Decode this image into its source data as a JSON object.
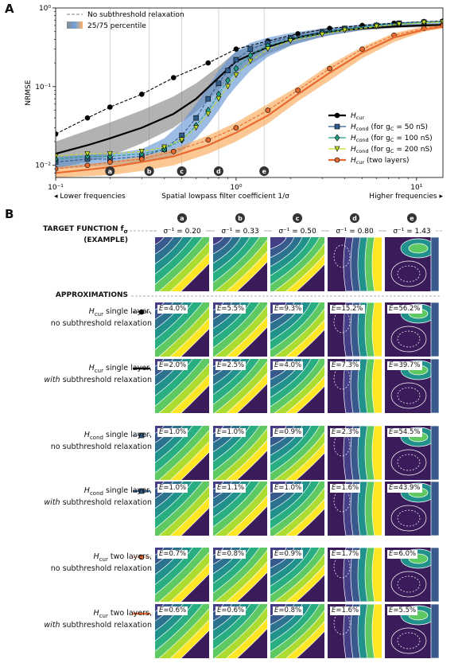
{
  "panel_a": {
    "letter": "A",
    "chart_data": {
      "type": "line",
      "xlabel": "Spatial lowpass filter coefficient 1/σ",
      "ylabel": "NRMSE",
      "xscale": "log",
      "yscale": "log",
      "xlim": [
        0.1,
        14
      ],
      "ylim": [
        0.007,
        1.0
      ],
      "x_ticks": [
        "10⁻¹",
        "10⁰",
        "10¹"
      ],
      "y_ticks": [
        "10⁻²",
        "10⁻¹",
        "10⁰"
      ],
      "left_hint": "◂ Lower frequencies",
      "right_hint": "Higher frequencies ▸",
      "grid": "vertical lines at markers",
      "markers": [
        {
          "label": "a",
          "x": 0.2
        },
        {
          "label": "b",
          "x": 0.33
        },
        {
          "label": "c",
          "x": 0.5
        },
        {
          "label": "d",
          "x": 0.8
        },
        {
          "label": "e",
          "x": 1.43
        }
      ],
      "legend_top": [
        {
          "label": "No subthreshold relaxation",
          "style": "dashed"
        },
        {
          "label": "25/75 percentile",
          "style": "band"
        }
      ],
      "legend": [
        {
          "label": "Hcur",
          "sub": "cur",
          "color": "#000000",
          "marker": "circle"
        },
        {
          "label": "Hcond (for gC = 50 nS)",
          "color": "#2f5c8a",
          "marker": "square"
        },
        {
          "label": "Hcond (for gC = 100 nS)",
          "color": "#1fa187",
          "marker": "diamond"
        },
        {
          "label": "Hcond (for gC = 200 nS)",
          "color": "#c3dc26",
          "marker": "triangle"
        },
        {
          "label": "Hcur (two layers)",
          "color": "#e86a30",
          "marker": "circle"
        }
      ],
      "legend_text": {
        "l1_main": "H",
        "l1_sub": "cur",
        "l1_rest": "",
        "l2_main": "H",
        "l2_sub": "cond",
        "l2_rest": " (for g",
        "l2_sub2": "C",
        "l2_val": " = 50 nS)",
        "l3_main": "H",
        "l3_sub": "cond",
        "l3_rest": " (for g",
        "l3_sub2": "C",
        "l3_val": " = 100 nS)",
        "l4_main": "H",
        "l4_sub": "cond",
        "l4_rest": " (for g",
        "l4_sub2": "C",
        "l4_val": " = 200 nS)",
        "l5_main": "H",
        "l5_sub": "cur",
        "l5_rest": " (two layers)"
      },
      "series": [
        {
          "key": "cur_dash",
          "color": "#000000",
          "dash": true,
          "marker": "circle",
          "x": [
            0.1,
            0.15,
            0.2,
            0.3,
            0.45,
            0.7,
            1.0,
            1.5,
            2.2,
            3.3,
            5,
            7.5,
            11,
            14
          ],
          "y": [
            0.025,
            0.04,
            0.055,
            0.08,
            0.13,
            0.2,
            0.3,
            0.38,
            0.47,
            0.55,
            0.6,
            0.64,
            0.67,
            0.68
          ]
        },
        {
          "key": "cur",
          "color": "#000000",
          "dash": false,
          "marker": "none",
          "x": [
            0.1,
            0.15,
            0.2,
            0.3,
            0.45,
            0.6,
            0.8,
            1.0,
            1.5,
            2.2,
            3.3,
            5,
            7.5,
            11,
            14
          ],
          "y": [
            0.014,
            0.018,
            0.022,
            0.03,
            0.045,
            0.07,
            0.13,
            0.21,
            0.32,
            0.42,
            0.5,
            0.55,
            0.58,
            0.6,
            0.61
          ]
        },
        {
          "key": "cond50",
          "color": "#2f5c8a",
          "dash": true,
          "marker": "square",
          "x": [
            0.1,
            0.15,
            0.2,
            0.3,
            0.4,
            0.5,
            0.6,
            0.7,
            0.8,
            0.9,
            1.0,
            1.2,
            1.5,
            2,
            3,
            4,
            6,
            8,
            11,
            14
          ],
          "y": [
            0.011,
            0.012,
            0.012,
            0.013,
            0.016,
            0.024,
            0.04,
            0.07,
            0.11,
            0.16,
            0.22,
            0.3,
            0.36,
            0.42,
            0.5,
            0.55,
            0.6,
            0.64,
            0.66,
            0.67
          ]
        },
        {
          "key": "cond100",
          "color": "#1fa187",
          "dash": true,
          "marker": "diamond",
          "x": [
            0.1,
            0.15,
            0.2,
            0.3,
            0.4,
            0.5,
            0.6,
            0.7,
            0.8,
            0.9,
            1.0,
            1.2,
            1.5,
            2,
            3,
            4,
            6,
            8,
            11,
            14
          ],
          "y": [
            0.012,
            0.013,
            0.013,
            0.014,
            0.016,
            0.021,
            0.032,
            0.05,
            0.08,
            0.12,
            0.17,
            0.25,
            0.33,
            0.4,
            0.48,
            0.54,
            0.6,
            0.63,
            0.66,
            0.67
          ]
        },
        {
          "key": "cond200",
          "color": "#c3dc26",
          "dash": true,
          "marker": "triangle",
          "x": [
            0.1,
            0.15,
            0.2,
            0.3,
            0.4,
            0.5,
            0.6,
            0.7,
            0.8,
            0.9,
            1.0,
            1.2,
            1.5,
            2,
            3,
            4,
            6,
            8,
            11,
            14
          ],
          "y": [
            0.013,
            0.014,
            0.014,
            0.015,
            0.017,
            0.021,
            0.03,
            0.045,
            0.07,
            0.1,
            0.14,
            0.21,
            0.3,
            0.38,
            0.46,
            0.52,
            0.58,
            0.62,
            0.65,
            0.66
          ]
        },
        {
          "key": "two_dash",
          "color": "#e86a30",
          "dash": true,
          "marker": "circle",
          "x": [
            0.1,
            0.15,
            0.2,
            0.3,
            0.45,
            0.7,
            1.0,
            1.5,
            2.2,
            3.3,
            5,
            7.5,
            11,
            14
          ],
          "y": [
            0.009,
            0.01,
            0.011,
            0.012,
            0.015,
            0.021,
            0.03,
            0.05,
            0.09,
            0.17,
            0.3,
            0.45,
            0.55,
            0.6
          ]
        },
        {
          "key": "two",
          "color": "#e86a30",
          "dash": false,
          "marker": "none",
          "x": [
            0.1,
            0.15,
            0.2,
            0.3,
            0.45,
            0.7,
            1.0,
            1.5,
            2.2,
            3.3,
            5,
            7.5,
            11,
            14
          ],
          "y": [
            0.008,
            0.0088,
            0.0095,
            0.011,
            0.013,
            0.018,
            0.026,
            0.043,
            0.08,
            0.15,
            0.27,
            0.42,
            0.53,
            0.58
          ]
        }
      ],
      "bands": [
        {
          "color": "#7f7f7f",
          "x": [
            0.1,
            0.2,
            0.3,
            0.45,
            0.6,
            0.8,
            1.0,
            1.5,
            2.2,
            3.3,
            5,
            8,
            14
          ],
          "lo": [
            0.009,
            0.013,
            0.019,
            0.03,
            0.048,
            0.09,
            0.15,
            0.26,
            0.36,
            0.45,
            0.52,
            0.56,
            0.58
          ],
          "hi": [
            0.02,
            0.035,
            0.05,
            0.075,
            0.11,
            0.18,
            0.28,
            0.38,
            0.47,
            0.54,
            0.6,
            0.62,
            0.64
          ]
        },
        {
          "color": "#5b8fd1",
          "x": [
            0.1,
            0.2,
            0.3,
            0.4,
            0.5,
            0.6,
            0.7,
            0.8,
            0.9,
            1.0,
            1.2,
            1.5,
            2,
            3,
            5,
            8,
            14
          ],
          "lo": [
            0.009,
            0.01,
            0.011,
            0.012,
            0.015,
            0.022,
            0.033,
            0.05,
            0.075,
            0.1,
            0.16,
            0.24,
            0.33,
            0.43,
            0.53,
            0.6,
            0.64
          ],
          "hi": [
            0.013,
            0.014,
            0.016,
            0.022,
            0.035,
            0.06,
            0.1,
            0.16,
            0.22,
            0.28,
            0.36,
            0.42,
            0.48,
            0.55,
            0.62,
            0.66,
            0.69
          ]
        },
        {
          "color": "#f9a14a",
          "x": [
            0.1,
            0.2,
            0.3,
            0.45,
            0.7,
            1.0,
            1.5,
            2.2,
            3.3,
            5,
            7.5,
            11,
            14
          ],
          "lo": [
            0.007,
            0.0075,
            0.0085,
            0.01,
            0.014,
            0.02,
            0.034,
            0.065,
            0.12,
            0.23,
            0.37,
            0.5,
            0.55
          ],
          "hi": [
            0.0095,
            0.011,
            0.013,
            0.016,
            0.024,
            0.035,
            0.06,
            0.1,
            0.19,
            0.32,
            0.48,
            0.58,
            0.63
          ]
        }
      ]
    }
  },
  "panel_b": {
    "letter": "B",
    "target_title": "TARGET FUNCTION f",
    "target_sub": "σ",
    "target_example": "(EXAMPLE)",
    "approx_title": "APPROXIMATIONS",
    "columns": [
      {
        "badge": "a",
        "sigma_label": "σ⁻¹ = 0.20",
        "s": 0.2
      },
      {
        "badge": "b",
        "sigma_label": "σ⁻¹ = 0.33",
        "s": 0.33
      },
      {
        "badge": "c",
        "sigma_label": "σ⁻¹ = 0.50",
        "s": 0.5
      },
      {
        "badge": "d",
        "sigma_label": "σ⁻¹ = 0.80",
        "s": 0.8
      },
      {
        "badge": "e",
        "sigma_label": "σ⁻¹ = 1.43",
        "s": 1.43
      }
    ],
    "rows": [
      {
        "main": "H",
        "sub": "cur",
        "line1_rest": " single layer,",
        "line2": "no subthreshold relaxation",
        "line2_italic": false,
        "legend_color": "#000000",
        "legend_dash": true,
        "legend_marker": "circle",
        "errors": [
          "E=4.0%",
          "E=5.5%",
          "E=9.3%",
          "E=15.2%",
          "E=56.2%"
        ]
      },
      {
        "main": "H",
        "sub": "cur",
        "line1_rest": " single layer,",
        "line2_pre": "",
        "line2_it": "with",
        "line2_post": " subthreshold relaxation",
        "line2_italic": true,
        "legend_color": "#000000",
        "legend_dash": false,
        "legend_marker": "none",
        "errors": [
          "E=2.0%",
          "E=2.5%",
          "E=4.0%",
          "E=7.3%",
          "E=39.7%"
        ]
      },
      {
        "main": "H",
        "sub": "cond",
        "line1_rest": " single layer,",
        "line2": "no subthreshold relaxation",
        "line2_italic": false,
        "legend_color": "#2f5c8a",
        "legend_dash": true,
        "legend_marker": "square",
        "errors": [
          "E=1.0%",
          "E=1.0%",
          "E=0.9%",
          "E=2.3%",
          "E=54.5%"
        ]
      },
      {
        "main": "H",
        "sub": "cond",
        "line1_rest": " single layer,",
        "line2_pre": "",
        "line2_it": "with",
        "line2_post": " subthreshold relaxation",
        "line2_italic": true,
        "legend_color": "#2f5c8a",
        "legend_dash": false,
        "legend_marker": "square",
        "errors": [
          "E=1.0%",
          "E=1.1%",
          "E=1.0%",
          "E=1.6%",
          "E=43.9%"
        ]
      },
      {
        "main": "H",
        "sub": "cur",
        "line1_rest": " two layers,",
        "line2": "no subthreshold relaxation",
        "line2_italic": false,
        "legend_color": "#e86a30",
        "legend_dash": true,
        "legend_marker": "circle",
        "errors": [
          "E=0.7%",
          "E=0.8%",
          "E=0.9%",
          "E=1.7%",
          "E=6.0%"
        ]
      },
      {
        "main": "H",
        "sub": "cur",
        "line1_rest": " two layers,",
        "line2_pre": "",
        "line2_it": "with",
        "line2_post": " subthreshold relaxation",
        "line2_italic": true,
        "legend_color": "#e86a30",
        "legend_dash": false,
        "legend_marker": "none",
        "errors": [
          "E=0.6%",
          "E=0.6%",
          "E=0.8%",
          "E=1.6%",
          "E=5.5%"
        ]
      }
    ]
  }
}
